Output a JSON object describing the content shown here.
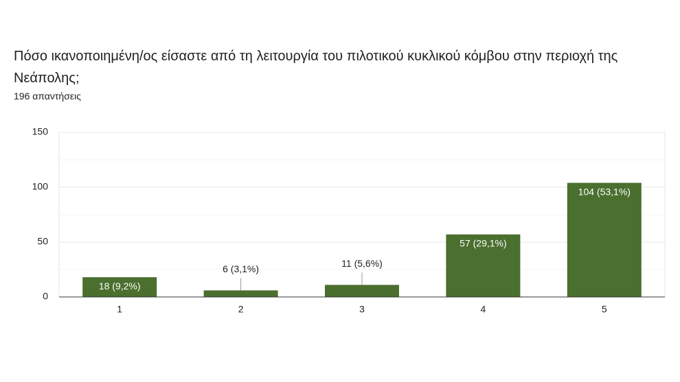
{
  "chart_data": {
    "type": "bar",
    "title": "Πόσο ικανοποιημένη/ος είσαστε από τη λειτουργία του πιλοτικού κυκλικού κόμβου στην περιοχή της Νεάπολης;",
    "subtitle": "196 απαντήσεις",
    "categories": [
      "1",
      "2",
      "3",
      "4",
      "5"
    ],
    "values": [
      18,
      6,
      11,
      57,
      104
    ],
    "value_labels": [
      "18 (9,2%)",
      "6 (3,1%)",
      "11 (5,6%)",
      "57 (29,1%)",
      "104 (53,1%)"
    ],
    "color": "#4a6f2e",
    "ylim": [
      0,
      150
    ],
    "yticks": [
      0,
      50,
      100,
      150
    ],
    "minor_yticks": [
      25,
      75,
      125
    ],
    "grid": true
  }
}
